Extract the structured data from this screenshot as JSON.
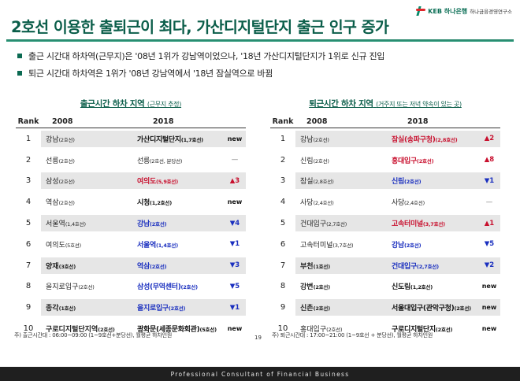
{
  "header": {
    "title": "2호선 이용한 출퇴근이 최다, 가산디지털단지 출근 인구 증가",
    "logo_main": "KEB 하나은행",
    "logo_sub": "하나금융경영연구소"
  },
  "bullets": [
    "출근 시간대 하차역(근무지)은 '08년 1위가 강남역이었으나, '18년 가산디지털단지가 1위로 신규 진입",
    "퇴근 시간대 하차역은 1위가 '08년 강남역에서 '18년 잠실역으로 바뀜"
  ],
  "left_table": {
    "title": "출근시간 하차 지역",
    "subtitle": "(근무지 추정)",
    "headers": [
      "Rank",
      "2008",
      "2018"
    ],
    "rows": [
      {
        "rank": "1",
        "s08": "강남",
        "t08": "(2호선)",
        "s18": "가산디지털단지",
        "t18": "(1,7호선)",
        "c18": "black",
        "change": "new",
        "dir": "new"
      },
      {
        "rank": "2",
        "s08": "선릉",
        "t08": "(2호선)",
        "s18": "선릉",
        "t18": "(2호선, 분당선)",
        "c18": "plain",
        "change": "—",
        "dir": "same"
      },
      {
        "rank": "3",
        "s08": "삼성",
        "t08": "(2호선)",
        "s18": "여의도",
        "t18": "(5,9호선)",
        "c18": "red",
        "change": "▲3",
        "dir": "up"
      },
      {
        "rank": "4",
        "s08": "역삼",
        "t08": "(2호선)",
        "s18": "시청",
        "t18": "(1,2호선)",
        "c18": "black",
        "change": "new",
        "dir": "new"
      },
      {
        "rank": "5",
        "s08": "서울역",
        "t08": "(1,4호선)",
        "s18": "강남",
        "t18": "(2호선)",
        "c18": "blue",
        "change": "▼4",
        "dir": "down"
      },
      {
        "rank": "6",
        "s08": "여의도",
        "t08": "(5호선)",
        "s18": "서울역",
        "t18": "(1,4호선)",
        "c18": "blue",
        "change": "▼1",
        "dir": "down"
      },
      {
        "rank": "7",
        "s08": "양재",
        "t08": "(3호선)",
        "s18": "역삼",
        "t18": "(2호선)",
        "c18": "blue",
        "change": "▼3",
        "dir": "down",
        "b08": true
      },
      {
        "rank": "8",
        "s08": "을지로입구",
        "t08": "(2호선)",
        "s18": "삼성(무역센터)",
        "t18": "(2호선)",
        "c18": "blue",
        "change": "▼5",
        "dir": "down"
      },
      {
        "rank": "9",
        "s08": "종각",
        "t08": "(1호선)",
        "s18": "을지로입구",
        "t18": "(2호선)",
        "c18": "blue",
        "change": "▼1",
        "dir": "down",
        "b08": true
      },
      {
        "rank": "10",
        "s08": "구로디지털단지역",
        "t08": "(2호선)",
        "s18": "광화문(세종문화회관)",
        "t18": "(5호선)",
        "c18": "black",
        "change": "new",
        "dir": "new",
        "b08": true
      }
    ]
  },
  "right_table": {
    "title": "퇴근시간 하차 지역",
    "subtitle": "(거주지 또는 저녁 약속이 있는 곳)",
    "headers": [
      "Rank",
      "2008",
      "2018"
    ],
    "rows": [
      {
        "rank": "1",
        "s08": "강남",
        "t08": "(2호선)",
        "s18": "잠실(송파구청)",
        "t18": "(2,8호선)",
        "c18": "red",
        "change": "▲2",
        "dir": "up"
      },
      {
        "rank": "2",
        "s08": "신림",
        "t08": "(2호선)",
        "s18": "홍대입구",
        "t18": "(2호선)",
        "c18": "red",
        "change": "▲8",
        "dir": "up"
      },
      {
        "rank": "3",
        "s08": "잠실",
        "t08": "(2,8호선)",
        "s18": "신림",
        "t18": "(2호선)",
        "c18": "blue",
        "change": "▼1",
        "dir": "down"
      },
      {
        "rank": "4",
        "s08": "사당",
        "t08": "(2,4호선)",
        "s18": "사당",
        "t18": "(2,4호선)",
        "c18": "plain",
        "change": "—",
        "dir": "same"
      },
      {
        "rank": "5",
        "s08": "건대입구",
        "t08": "(2,7호선)",
        "s18": "고속터미널",
        "t18": "(3,7호선)",
        "c18": "red",
        "change": "▲1",
        "dir": "up"
      },
      {
        "rank": "6",
        "s08": "고속터미널",
        "t08": "(3,7호선)",
        "s18": "강남",
        "t18": "(2호선)",
        "c18": "blue",
        "change": "▼5",
        "dir": "down"
      },
      {
        "rank": "7",
        "s08": "부천",
        "t08": "(1호선)",
        "s18": "건대입구",
        "t18": "(2,7호선)",
        "c18": "blue",
        "change": "▼2",
        "dir": "down",
        "b08": true
      },
      {
        "rank": "8",
        "s08": "강변",
        "t08": "(2호선)",
        "s18": "신도림",
        "t18": "(1,2호선)",
        "c18": "black",
        "change": "new",
        "dir": "new",
        "b08": true
      },
      {
        "rank": "9",
        "s08": "신촌",
        "t08": "(2호선)",
        "s18": "서울대입구(관악구청)",
        "t18": "(2호선)",
        "c18": "black",
        "change": "new",
        "dir": "new",
        "b08": true
      },
      {
        "rank": "10",
        "s08": "홍대입구",
        "t08": "(2호선)",
        "s18": "구로디지털단지",
        "t18": "(2호선)",
        "c18": "black",
        "change": "new",
        "dir": "new"
      }
    ]
  },
  "notes": {
    "left": "주) 출근시간대 : 06:00~09:00 (1~9호선+분당선), 월평균 하차인원",
    "right": "주) 퇴근시간대 : 17:00~21:00 (1~9호선 + 분당선), 월평균 하차인원",
    "page": "19"
  },
  "footer": "Professional Consultant of Financial Business"
}
